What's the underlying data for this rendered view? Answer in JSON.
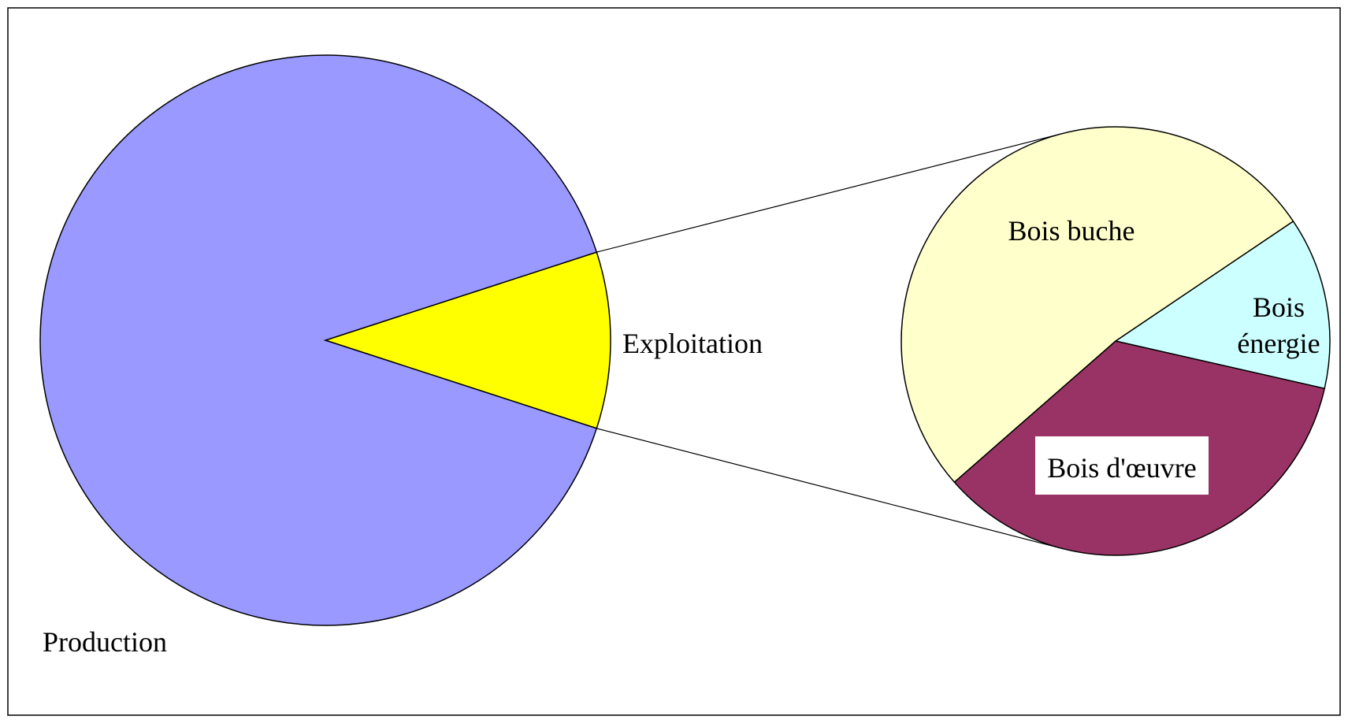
{
  "chart_data": {
    "type": "pie",
    "subtype": "pie-of-pie",
    "main_pie": {
      "slices": [
        {
          "label": "Production",
          "value": 0.9,
          "color": "#9999ff"
        },
        {
          "label": "Exploitation",
          "value": 0.1,
          "color": "#ffff00"
        }
      ]
    },
    "secondary_pie": {
      "expands": "Exploitation",
      "slices": [
        {
          "label": "Bois buche",
          "value": 0.52,
          "color": "#ffffcc"
        },
        {
          "label": "Bois énergie",
          "label_lines": [
            "Bois",
            "énergie"
          ],
          "value": 0.13,
          "color": "#ccffff"
        },
        {
          "label": "Bois d'œuvre",
          "value": 0.35,
          "color": "#993366"
        }
      ]
    },
    "legend": "none",
    "grid": false
  }
}
